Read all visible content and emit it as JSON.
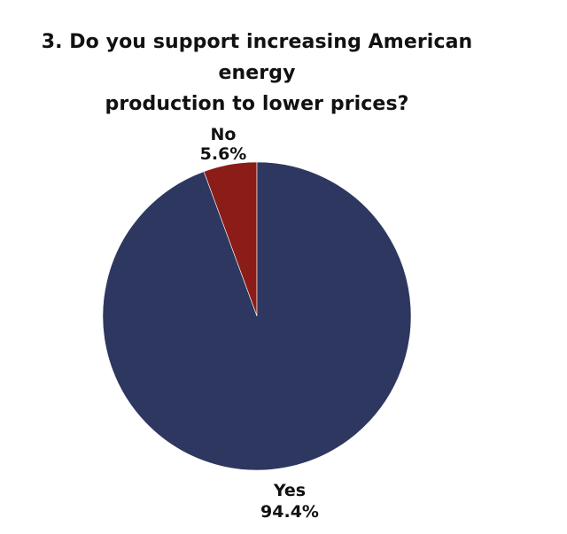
{
  "chart_data": {
    "type": "pie",
    "title_lines": [
      "3. Do you support increasing American energy",
      "production to lower prices?"
    ],
    "slices": [
      {
        "label": "No",
        "value_label": "5.6%",
        "value": 5.6,
        "color": "#8b1c17"
      },
      {
        "label": "Yes",
        "value_label": "94.4%",
        "value": 94.4,
        "color": "#2e3760"
      }
    ],
    "start_angle_deg": 0,
    "direction": "counterclockwise-from-top"
  }
}
